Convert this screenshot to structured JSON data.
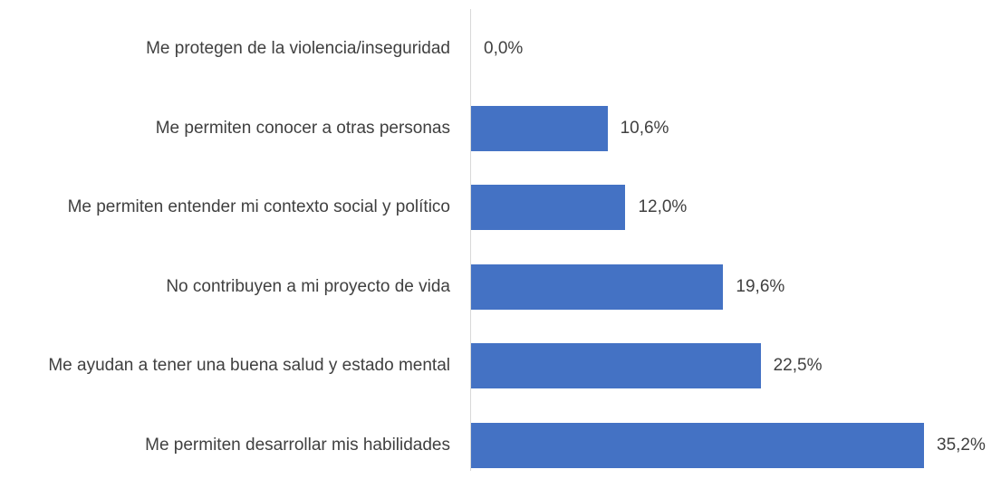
{
  "chart_data": {
    "type": "barh",
    "categories": [
      "Me protegen de la violencia/inseguridad",
      "Me permiten conocer a otras personas",
      "Me permiten entender mi contexto social y político",
      "No contribuyen a mi proyecto de vida",
      "Me ayudan a tener una buena salud y estado mental",
      "Me permiten desarrollar mis habilidades"
    ],
    "values": [
      0.0,
      10.6,
      12.0,
      19.6,
      22.5,
      35.2
    ],
    "value_labels": [
      "0,0%",
      "10,6%",
      "12,0%",
      "19,6%",
      "22,5%",
      "35,2%"
    ],
    "color": "#4472c4"
  }
}
